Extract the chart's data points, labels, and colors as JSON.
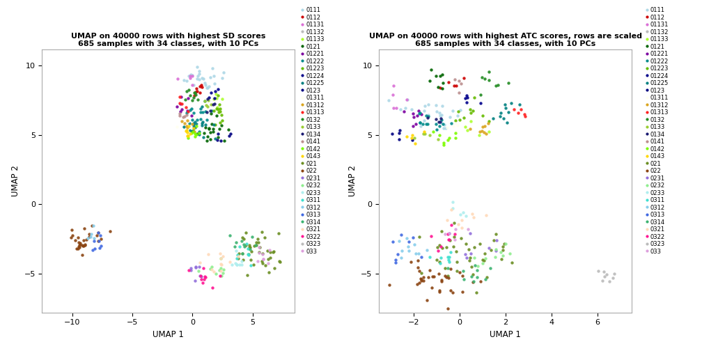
{
  "title1": "UMAP on 40000 rows with highest SD scores\n685 samples with 34 classes, with 10 PCs",
  "title2": "UMAP on 40000 rows with highest ATC scores, rows are scaled\n685 samples with 34 classes, with 10 PCs",
  "xlabel": "UMAP 1",
  "ylabel": "UMAP 2",
  "xlim1": [
    -12.5,
    8.5
  ],
  "ylim1": [
    -7.8,
    11.2
  ],
  "xlim2": [
    -3.5,
    7.5
  ],
  "ylim2": [
    -7.8,
    11.2
  ],
  "xticks1": [
    -10,
    -5,
    0,
    5
  ],
  "yticks1": [
    -5,
    0,
    5,
    10
  ],
  "xticks2": [
    -2,
    0,
    2,
    4,
    6
  ],
  "yticks2": [
    -5,
    0,
    5,
    10
  ],
  "classes": [
    "0111",
    "0112",
    "01131",
    "01132",
    "01133",
    "0121",
    "01221",
    "01222",
    "01223",
    "01224",
    "01225",
    "0123",
    "01311",
    "01312",
    "01313",
    "0132",
    "0133",
    "0134",
    "0141",
    "0142",
    "0143",
    "021",
    "022",
    "0231",
    "0232",
    "0233",
    "0311",
    "0312",
    "0313",
    "0314",
    "0321",
    "0322",
    "0323",
    "033"
  ],
  "colors": [
    "#ADD8E6",
    "#CC0000",
    "#DA70D6",
    "#BBBBBB",
    "#ADFF2F",
    "#006400",
    "#7B00A0",
    "#008B8B",
    "#66BB00",
    "#00008B",
    "#008080",
    "#000080",
    "#FFFFF0",
    "#DAA520",
    "#FF2020",
    "#228B22",
    "#9ACD32",
    "#191970",
    "#BC8F8F",
    "#7CFC00",
    "#FFD700",
    "#6B8E23",
    "#8B4513",
    "#9370DB",
    "#90EE90",
    "#AFEEEE",
    "#40E0D0",
    "#87CEEB",
    "#4169E1",
    "#3CB371",
    "#FFDAB9",
    "#FF1493",
    "#BBBBBB",
    "#DDA0DD"
  ],
  "seed": 42
}
